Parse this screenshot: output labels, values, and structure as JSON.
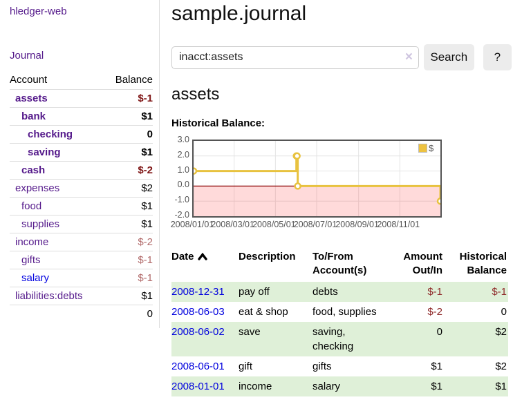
{
  "app": {
    "brand": "hledger-web",
    "nav_journal": "Journal"
  },
  "colors": {
    "link_purple": "#551a8b",
    "link_blue": "#0000e0",
    "negative_strong": "#7f1616",
    "negative_soft": "#b26b6b",
    "negative_row": "#8f2a2a",
    "row_stripe_green": "#dff0d8",
    "series_gold": "#edc240",
    "zero_line": "#8b0000"
  },
  "sidebar": {
    "accounts_header": {
      "account": "Account",
      "balance": "Balance"
    },
    "accounts": [
      {
        "name": "assets",
        "balance": "$-1",
        "indent": 0,
        "bold": true,
        "negative": true
      },
      {
        "name": "bank",
        "balance": "$1",
        "indent": 1,
        "bold": true,
        "negative": false
      },
      {
        "name": "checking",
        "balance": "0",
        "indent": 2,
        "bold": true,
        "negative": false
      },
      {
        "name": "saving",
        "balance": "$1",
        "indent": 2,
        "bold": true,
        "negative": false
      },
      {
        "name": "cash",
        "balance": "$-2",
        "indent": 1,
        "bold": true,
        "negative": true
      },
      {
        "name": "expenses",
        "balance": "$2",
        "indent": 0,
        "bold": false,
        "negative": false
      },
      {
        "name": "food",
        "balance": "$1",
        "indent": 1,
        "bold": false,
        "negative": false
      },
      {
        "name": "supplies",
        "balance": "$1",
        "indent": 1,
        "bold": false,
        "negative": false
      },
      {
        "name": "income",
        "balance": "$-2",
        "indent": 0,
        "bold": false,
        "negative": true
      },
      {
        "name": "gifts",
        "balance": "$-1",
        "indent": 1,
        "bold": false,
        "negative": true
      },
      {
        "name": "salary",
        "balance": "$-1",
        "indent": 1,
        "bold": false,
        "negative": true,
        "blue": true
      },
      {
        "name": "liabilities:debts",
        "balance": "$1",
        "indent": 0,
        "bold": false,
        "negative": false
      }
    ],
    "total": "0"
  },
  "header": {
    "title": "sample.journal"
  },
  "search": {
    "value": "inacct:assets",
    "clear_icon": "×",
    "button": "Search",
    "help_button": "?"
  },
  "account_page": {
    "heading": "assets",
    "chart_label": "Historical Balance:"
  },
  "chart_data": {
    "type": "line",
    "step": true,
    "title": "Historical Balance:",
    "legend": "$",
    "legend_position": "top-right",
    "grid": true,
    "ylim": [
      -2,
      3
    ],
    "y_ticks": [
      3,
      2,
      1,
      0,
      -1,
      -2
    ],
    "x_range": [
      "2008-01-01",
      "2008-12-31"
    ],
    "x_ticks": [
      {
        "date": "2008-01-01",
        "label": "2008/01/01"
      },
      {
        "date": "2008-03-01",
        "label": "2008/03/01"
      },
      {
        "date": "2008-05-01",
        "label": "2008/05/01"
      },
      {
        "date": "2008-07-01",
        "label": "2008/07/01"
      },
      {
        "date": "2008-09-01",
        "label": "2008/09/01"
      },
      {
        "date": "2008-11-01",
        "label": "2008/11/01"
      }
    ],
    "series": [
      {
        "name": "$",
        "color": "#e8c23f",
        "points": [
          [
            "2008-01-01",
            1
          ],
          [
            "2008-06-01",
            2
          ],
          [
            "2008-06-02",
            2
          ],
          [
            "2008-06-03",
            0
          ],
          [
            "2008-12-31",
            -1
          ]
        ]
      }
    ],
    "negative_region_fill": "rgba(255,70,70,0.2)",
    "zero_line_color": "#8b0000"
  },
  "register": {
    "columns": [
      "Date",
      "Description",
      "To/From Account(s)",
      "Amount Out/In",
      "Historical Balance"
    ],
    "rows": [
      {
        "date": "2008-12-31",
        "description": "pay off",
        "accounts": "debts",
        "amount": "$-1",
        "amount_negative": true,
        "balance": "$-1",
        "balance_negative": true
      },
      {
        "date": "2008-06-03",
        "description": "eat & shop",
        "accounts": "food, supplies",
        "amount": "$-2",
        "amount_negative": true,
        "balance": "0",
        "balance_negative": false
      },
      {
        "date": "2008-06-02",
        "description": "save",
        "accounts": "saving, checking",
        "amount": "0",
        "amount_negative": false,
        "balance": "$2",
        "balance_negative": false
      },
      {
        "date": "2008-06-01",
        "description": "gift",
        "accounts": "gifts",
        "amount": "$1",
        "amount_negative": false,
        "balance": "$2",
        "balance_negative": false
      },
      {
        "date": "2008-01-01",
        "description": "income",
        "accounts": "salary",
        "amount": "$1",
        "amount_negative": false,
        "balance": "$1",
        "balance_negative": false
      }
    ]
  }
}
